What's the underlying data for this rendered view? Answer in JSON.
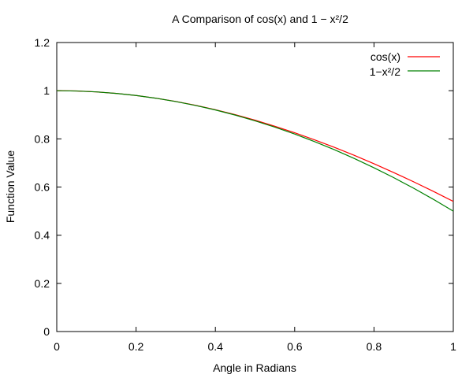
{
  "chart_data": {
    "type": "line",
    "title": "A Comparison of cos(x) and 1 − x²/2",
    "xlabel": "Angle in Radians",
    "ylabel": "Function Value",
    "xlim": [
      0,
      1
    ],
    "ylim": [
      0,
      1.2
    ],
    "xticks": [
      0,
      0.2,
      0.4,
      0.6,
      0.8,
      1
    ],
    "xtick_labels": [
      "0",
      "0.2",
      "0.4",
      "0.6",
      "0.8",
      "1"
    ],
    "yticks": [
      0,
      0.2,
      0.4,
      0.6,
      0.8,
      1,
      1.2
    ],
    "ytick_labels": [
      "0",
      "0.2",
      "0.4",
      "0.6",
      "0.8",
      "1",
      "1.2"
    ],
    "grid": false,
    "legend_position": "top-right",
    "x": [
      0,
      0.05,
      0.1,
      0.15,
      0.2,
      0.25,
      0.3,
      0.35,
      0.4,
      0.45,
      0.5,
      0.55,
      0.6,
      0.65,
      0.7,
      0.75,
      0.8,
      0.85,
      0.9,
      0.95,
      1
    ],
    "series": [
      {
        "name": "cos(x)",
        "color": "#ff0000",
        "values": [
          1,
          0.9988,
          0.995,
          0.9888,
          0.9801,
          0.9689,
          0.9553,
          0.9394,
          0.9211,
          0.9004,
          0.8776,
          0.8525,
          0.8253,
          0.7961,
          0.7648,
          0.7317,
          0.6967,
          0.66,
          0.6216,
          0.5817,
          0.5403
        ]
      },
      {
        "name": "1−x²/2",
        "color": "#008000",
        "values": [
          1,
          0.99875,
          0.995,
          0.98875,
          0.98,
          0.96875,
          0.955,
          0.93875,
          0.92,
          0.89875,
          0.875,
          0.84875,
          0.82,
          0.78875,
          0.755,
          0.71875,
          0.68,
          0.63875,
          0.595,
          0.54875,
          0.5
        ]
      }
    ]
  }
}
